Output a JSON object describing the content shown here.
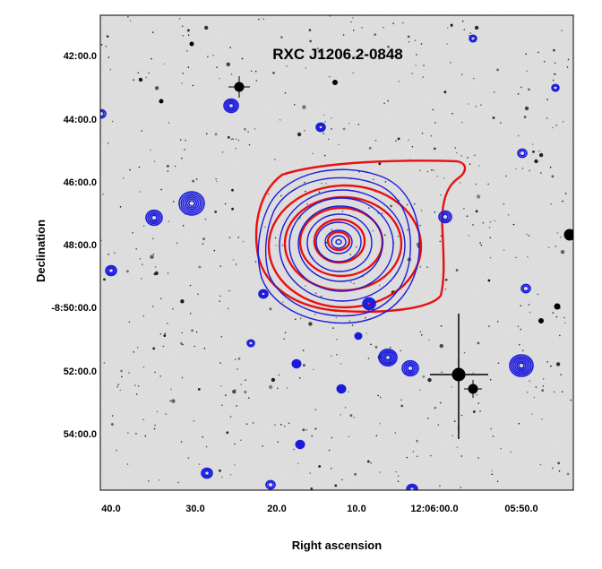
{
  "figure": {
    "title": "RXC J1206.2-0848",
    "x_axis_label": "Right ascension",
    "y_axis_label": "Declination",
    "x_ticks": [
      "40.0",
      "30.0",
      "20.0",
      "10.0",
      "12:06:00.0",
      "05:50.0"
    ],
    "y_ticks": [
      "42:00.0",
      "44:00.0",
      "46:00.0",
      "48:00.0",
      "-8:50:00.0",
      "52:00.0",
      "54:00.0"
    ],
    "background": "optical sky image (inverted greyscale)",
    "contour_colors": {
      "xray": "#e81010",
      "radio": "#1a1adb"
    }
  }
}
